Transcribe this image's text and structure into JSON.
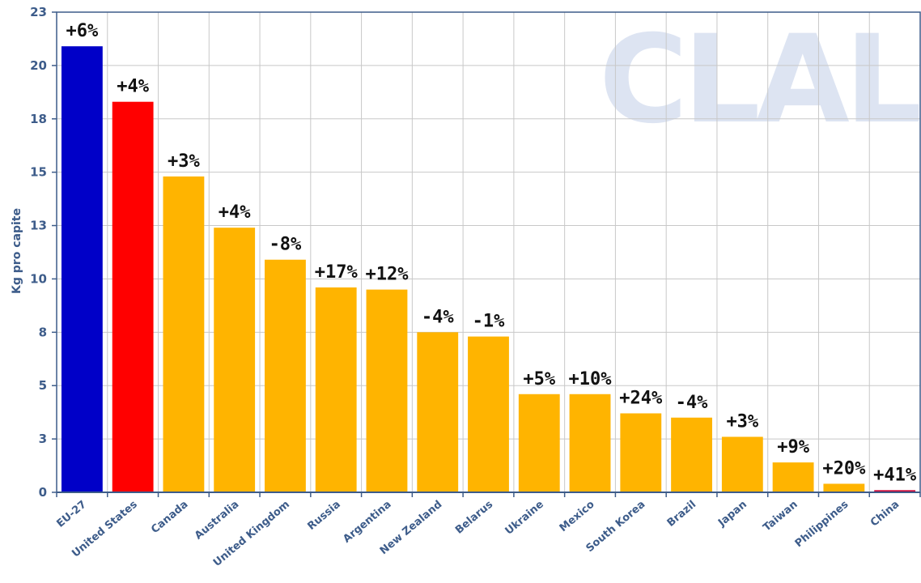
{
  "watermark": "CLAL",
  "chart_data": {
    "type": "bar",
    "title": "",
    "xlabel": "",
    "ylabel": "Kg pro capite",
    "ylim": [
      0,
      22.5
    ],
    "yticks": [
      0,
      2.5,
      5,
      7.5,
      10,
      12.5,
      15,
      17.5,
      20,
      22.5
    ],
    "ytick_labels": [
      "0",
      "3",
      "5",
      "8",
      "10",
      "13",
      "15",
      "18",
      "20",
      "23"
    ],
    "grid": true,
    "categories": [
      "EU-27",
      "United States",
      "Canada",
      "Australia",
      "United Kingdom",
      "Russia",
      "Argentina",
      "New Zealand",
      "Belarus",
      "Ukraine",
      "Mexico",
      "South Korea",
      "Brazil",
      "Japan",
      "Taiwan",
      "Philippines",
      "China"
    ],
    "values": [
      20.9,
      18.3,
      14.8,
      12.4,
      10.9,
      9.6,
      9.5,
      7.5,
      7.3,
      4.6,
      4.6,
      3.7,
      3.5,
      2.6,
      1.4,
      0.4,
      0.1
    ],
    "data_labels": [
      "+6%",
      "+4%",
      "+3%",
      "+4%",
      "-8%",
      "+17%",
      "+12%",
      "-4%",
      "-1%",
      "+5%",
      "+10%",
      "+24%",
      "-4%",
      "+3%",
      "+9%",
      "+20%",
      "+41%"
    ],
    "colors": [
      "#0000c8",
      "#ff0000",
      "#ffb400",
      "#ffb400",
      "#ffb400",
      "#ffb400",
      "#ffb400",
      "#ffb400",
      "#ffb400",
      "#ffb400",
      "#ffb400",
      "#ffb400",
      "#ffb400",
      "#ffb400",
      "#ffb400",
      "#ffb400",
      "#cc0033"
    ]
  }
}
